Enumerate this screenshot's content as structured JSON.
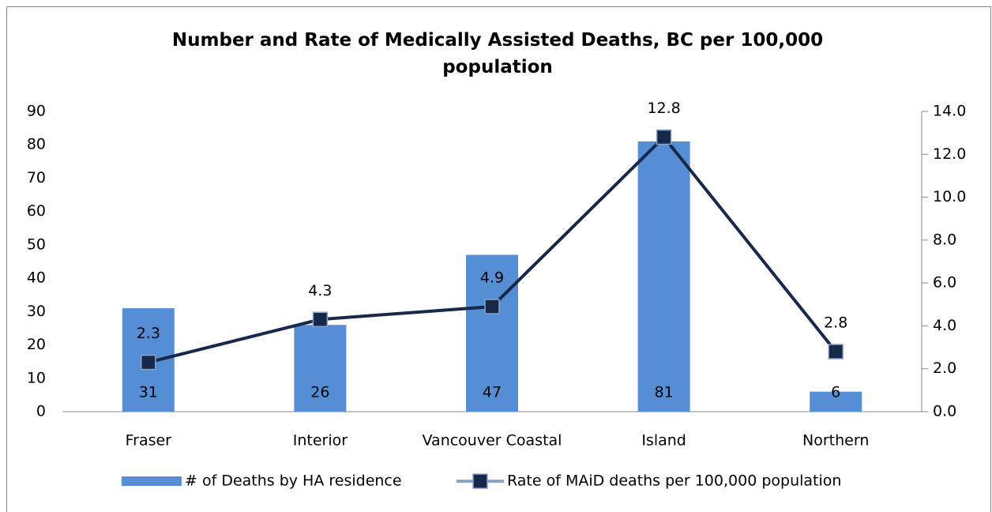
{
  "chart_data": {
    "type": "combo",
    "title": "Number and Rate of Medically Assisted Deaths, BC per 100,000 population",
    "categories": [
      "Fraser",
      "Interior",
      "Vancouver Coastal",
      "Island",
      "Northern"
    ],
    "series": [
      {
        "name": "# of Deaths by HA residence",
        "type": "bar",
        "color": "#558ed5",
        "values": [
          31,
          26,
          47,
          81,
          6
        ]
      },
      {
        "name": "Rate of MAiD deaths per 100,000 population",
        "type": "line",
        "axis": "y2",
        "color": "#17294a",
        "values": [
          2.3,
          4.3,
          4.9,
          12.8,
          2.8
        ]
      }
    ],
    "ylim": [
      0,
      90
    ],
    "yticks": [
      0,
      10,
      20,
      30,
      40,
      50,
      60,
      70,
      80,
      90
    ],
    "y2lim": [
      0,
      14
    ],
    "y2ticks": [
      {
        "value": 0,
        "label": "0.0"
      },
      {
        "value": 2,
        "label": "2.0"
      },
      {
        "value": 4,
        "label": "4.0"
      },
      {
        "value": 6,
        "label": "6.0"
      },
      {
        "value": 8,
        "label": "8.0"
      },
      {
        "value": 10,
        "label": "10.0"
      },
      {
        "value": 12,
        "label": "12.0"
      },
      {
        "value": 14,
        "label": "14.0"
      }
    ],
    "grid": false,
    "legend": "bottom"
  }
}
